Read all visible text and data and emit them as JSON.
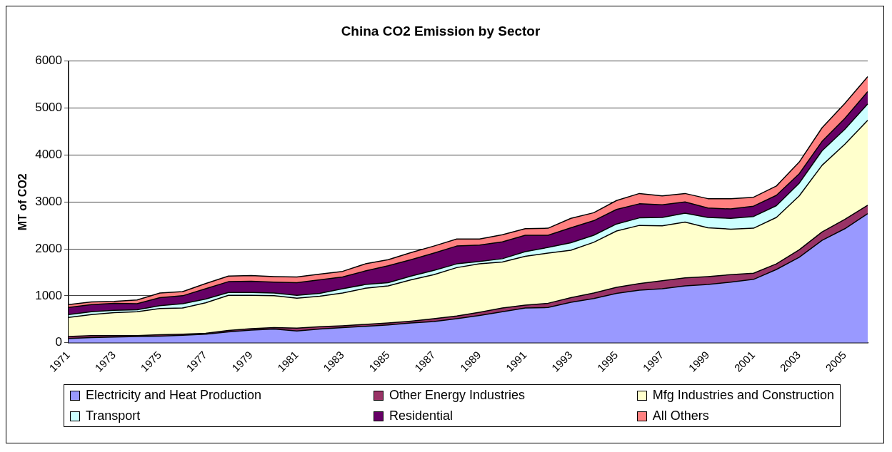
{
  "chart_data": {
    "type": "area",
    "title": "China CO2 Emission by Sector",
    "ylabel": "MT of CO2",
    "categories": [
      "1971",
      null,
      "1973",
      null,
      "1975",
      null,
      "1977",
      null,
      "1979",
      null,
      "1981",
      null,
      "1983",
      null,
      "1985",
      null,
      "1987",
      null,
      "1989",
      null,
      "1991",
      null,
      "1993",
      null,
      "1995",
      null,
      "1997",
      null,
      "1999",
      null,
      "2001",
      null,
      "2003",
      null,
      "2005",
      null
    ],
    "stacked": true,
    "ylim": [
      0,
      6000
    ],
    "yticks": [
      0,
      1000,
      2000,
      3000,
      4000,
      5000,
      6000
    ],
    "grid": "y",
    "legend": "bottom",
    "marker": "none",
    "series": [
      {
        "name": "Electricity and Heat Production",
        "color": "#9999ff",
        "values": [
          90,
          110,
          120,
          130,
          140,
          160,
          180,
          230,
          270,
          290,
          250,
          290,
          320,
          350,
          380,
          420,
          450,
          510,
          580,
          660,
          740,
          750,
          860,
          940,
          1050,
          1120,
          1150,
          1210,
          1240,
          1290,
          1350,
          1560,
          1820,
          2180,
          2430,
          2750
        ]
      },
      {
        "name": "Other Energy Industries",
        "color": "#993366",
        "values": [
          40,
          40,
          30,
          20,
          30,
          20,
          20,
          30,
          30,
          30,
          60,
          50,
          40,
          40,
          40,
          40,
          60,
          60,
          70,
          80,
          60,
          90,
          100,
          120,
          130,
          140,
          170,
          170,
          170,
          160,
          130,
          120,
          160,
          180,
          200,
          180
        ]
      },
      {
        "name": "Mfg Industries and Construction",
        "color": "#ffffcc",
        "values": [
          410,
          450,
          490,
          510,
          560,
          560,
          650,
          750,
          710,
          680,
          640,
          650,
          700,
          770,
          790,
          880,
          940,
          1030,
          1030,
          980,
          1040,
          1070,
          1010,
          1080,
          1200,
          1240,
          1170,
          1190,
          1040,
          970,
          960,
          990,
          1150,
          1420,
          1600,
          1810
        ]
      },
      {
        "name": "Transport",
        "color": "#ccffff",
        "values": [
          60,
          60,
          50,
          40,
          60,
          90,
          80,
          60,
          60,
          60,
          60,
          60,
          90,
          80,
          70,
          80,
          90,
          80,
          50,
          70,
          100,
          120,
          160,
          150,
          150,
          160,
          180,
          190,
          220,
          230,
          250,
          250,
          270,
          310,
          320,
          350
        ]
      },
      {
        "name": "Residential",
        "color": "#660066",
        "values": [
          150,
          150,
          150,
          130,
          170,
          170,
          220,
          230,
          240,
          230,
          270,
          290,
          250,
          290,
          360,
          350,
          370,
          380,
          350,
          360,
          350,
          260,
          320,
          310,
          310,
          300,
          270,
          240,
          200,
          200,
          220,
          220,
          200,
          200,
          230,
          260
        ]
      },
      {
        "name": "All Others",
        "color": "#ff8080",
        "values": [
          60,
          60,
          40,
          80,
          100,
          90,
          110,
          120,
          120,
          120,
          120,
          120,
          120,
          150,
          130,
          150,
          150,
          150,
          130,
          150,
          140,
          150,
          200,
          170,
          190,
          220,
          190,
          180,
          200,
          220,
          190,
          200,
          250,
          290,
          320,
          320
        ]
      }
    ]
  }
}
